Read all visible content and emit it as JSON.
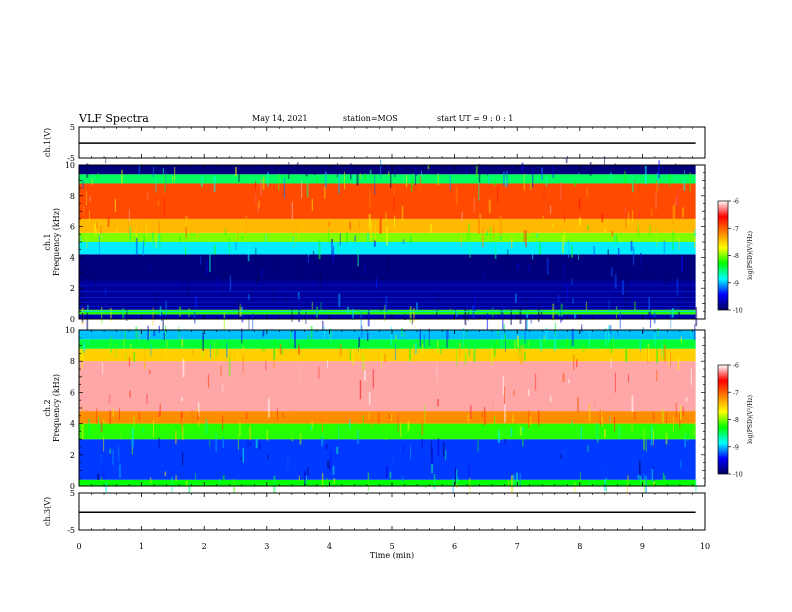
{
  "header": {
    "title": "VLF Spectra",
    "date": "May 14, 2021",
    "station": "station=MOS",
    "start": "start  UT =   9 : 0  : 1"
  },
  "chart_data": [
    {
      "type": "line",
      "panel": "ch1-waveform",
      "ylabel": "ch.1(V)",
      "ylim": [
        -5,
        5
      ],
      "yticks": [
        5,
        -5
      ],
      "x_range": [
        0,
        10
      ],
      "x": [
        0,
        9.85
      ],
      "y": [
        -0.2,
        -0.2
      ],
      "color": "#000000"
    },
    {
      "type": "heatmap",
      "panel": "ch1-spectrogram",
      "ylabel_top": "ch.1",
      "ylabel": "Frequency (kHz)",
      "ylim": [
        0,
        10
      ],
      "yticks": [
        "0",
        "2",
        "4",
        "6",
        "8",
        "10"
      ],
      "x_range": [
        0,
        9.85
      ],
      "colorbar": {
        "label": "log(PSD)(V²/Hz)",
        "range": [
          -10,
          -6
        ],
        "ticks": [
          "-6",
          "-7",
          "-8",
          "-9",
          "-10"
        ]
      },
      "bands": [
        {
          "f0": 0,
          "f1": 0.3,
          "level": -9.7
        },
        {
          "f0": 0.3,
          "f1": 0.6,
          "level": -8.2
        },
        {
          "f0": 0.6,
          "f1": 2.5,
          "level": -9.8
        },
        {
          "f0": 2.5,
          "f1": 4.2,
          "level": -9.9
        },
        {
          "f0": 4.2,
          "f1": 5.0,
          "level": -8.9
        },
        {
          "f0": 5.0,
          "f1": 5.6,
          "level": -8.0
        },
        {
          "f0": 5.6,
          "f1": 6.5,
          "level": -7.4
        },
        {
          "f0": 6.5,
          "f1": 8.8,
          "level": -6.9
        },
        {
          "f0": 8.8,
          "f1": 9.4,
          "level": -8.5
        },
        {
          "f0": 9.4,
          "f1": 10,
          "level": -9.9
        }
      ]
    },
    {
      "type": "heatmap",
      "panel": "ch2-spectrogram",
      "ylabel_top": "ch.2",
      "ylabel": "Frequency (kHz)",
      "ylim": [
        0,
        10
      ],
      "yticks": [
        "0",
        "2",
        "4",
        "6",
        "8",
        "10"
      ],
      "x_range": [
        0,
        9.85
      ],
      "colorbar": {
        "label": "log(PSD)(V²/Hz)",
        "range": [
          -10,
          -6
        ],
        "ticks": [
          "-6",
          "-7",
          "-8",
          "-9",
          "-10"
        ]
      },
      "bands": [
        {
          "f0": 0,
          "f1": 0.4,
          "level": -8.3
        },
        {
          "f0": 0.4,
          "f1": 3.0,
          "level": -9.3
        },
        {
          "f0": 3.0,
          "f1": 4.0,
          "level": -8.2
        },
        {
          "f0": 4.0,
          "f1": 4.8,
          "level": -7.2
        },
        {
          "f0": 4.8,
          "f1": 8.0,
          "level": -6.2
        },
        {
          "f0": 8.0,
          "f1": 8.8,
          "level": -7.5
        },
        {
          "f0": 8.8,
          "f1": 9.4,
          "level": -8.4
        },
        {
          "f0": 9.4,
          "f1": 10,
          "level": -9.0
        }
      ]
    },
    {
      "type": "line",
      "panel": "ch3-waveform",
      "ylabel": "ch.3(V)",
      "ylim": [
        -5,
        5
      ],
      "yticks": [
        5,
        -5
      ],
      "x_range": [
        0,
        10
      ],
      "x": [
        0,
        9.85
      ],
      "y": [
        -0.2,
        -0.2
      ],
      "color": "#000000"
    }
  ],
  "xaxis": {
    "label": "Time  (min)",
    "range": [
      0,
      10
    ],
    "ticks": [
      "0",
      "1",
      "2",
      "3",
      "4",
      "5",
      "6",
      "7",
      "8",
      "9",
      "10"
    ]
  },
  "colors": {
    "scale": [
      "#000060",
      "#0000ff",
      "#00ffff",
      "#00ff00",
      "#ffff00",
      "#ff8000",
      "#ff0000",
      "#ffffff"
    ]
  }
}
